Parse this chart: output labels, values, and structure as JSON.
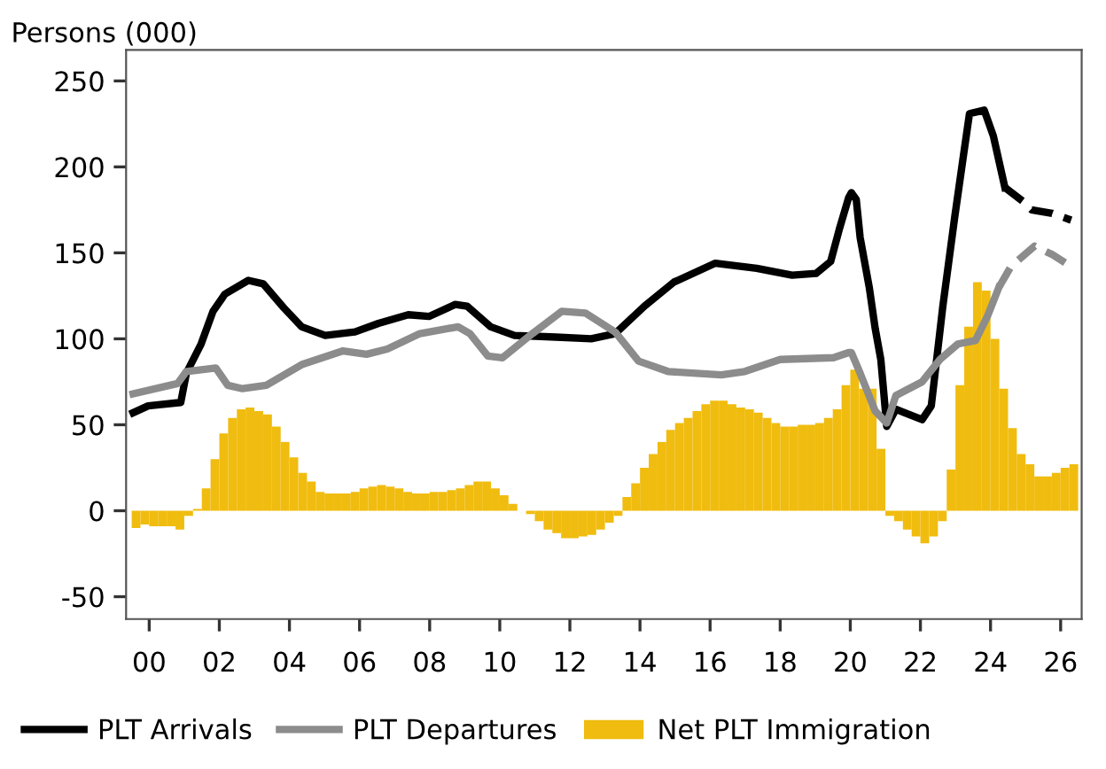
{
  "chart_data": {
    "type": "bar",
    "ylabel": "Persons (000)",
    "legend": "bottom",
    "grid": false,
    "xlim": [
      1999.34,
      2026.6
    ],
    "ylim": [
      -63,
      268
    ],
    "xticks": [
      {
        "value": 2000,
        "label": "00"
      },
      {
        "value": 2002,
        "label": "02"
      },
      {
        "value": 2004,
        "label": "04"
      },
      {
        "value": 2006,
        "label": "06"
      },
      {
        "value": 2008,
        "label": "08"
      },
      {
        "value": 2010,
        "label": "10"
      },
      {
        "value": 2012,
        "label": "12"
      },
      {
        "value": 2014,
        "label": "14"
      },
      {
        "value": 2016,
        "label": "16"
      },
      {
        "value": 2018,
        "label": "18"
      },
      {
        "value": 2020,
        "label": "20"
      },
      {
        "value": 2022,
        "label": "22"
      },
      {
        "value": 2024,
        "label": "24"
      },
      {
        "value": 2026,
        "label": "26"
      }
    ],
    "yticks": [
      -50,
      0,
      50,
      100,
      150,
      200,
      250
    ],
    "series": [
      {
        "name": "PLT Arrivals",
        "type": "line",
        "color": "#000000",
        "line_style": "solid",
        "x": [
          1999.54,
          1999.97,
          2000.9,
          2001.06,
          2001.48,
          2001.82,
          2002.16,
          2002.83,
          2003.25,
          2003.84,
          2004.35,
          2005.02,
          2005.87,
          2006.54,
          2007.39,
          2007.98,
          2008.73,
          2009.07,
          2009.74,
          2010.42,
          2011.6,
          2012.61,
          2013.29,
          2014.13,
          2014.97,
          2016.15,
          2017.33,
          2018.34,
          2019.02,
          2019.44,
          2019.69,
          2019.95,
          2020.03,
          2020.17,
          2020.28,
          2020.54,
          2020.71,
          2020.87,
          2021.04,
          2021.3,
          2022.05,
          2022.31,
          2022.64,
          2022.98,
          2023.23,
          2023.4,
          2023.82,
          2024.08,
          2024.41
        ],
        "values": [
          57,
          61,
          63,
          80,
          97,
          116,
          126,
          134,
          132,
          118,
          107,
          102,
          104,
          109,
          114,
          113,
          120,
          119,
          107,
          102,
          101,
          100,
          103,
          119,
          133,
          144,
          141,
          137,
          138,
          145,
          164,
          182,
          185,
          181,
          159,
          130,
          106,
          88,
          49,
          59,
          53,
          61,
          119,
          171,
          207,
          231,
          233,
          218,
          188
        ]
      },
      {
        "type": "line",
        "color": "#000000",
        "line_style": "dashed",
        "x": [
          2024.41,
          2024.92,
          2025.17,
          2025.76,
          2026.3
        ],
        "values": [
          188,
          180,
          175,
          173,
          169
        ]
      },
      {
        "name": "PLT Departures",
        "type": "line",
        "color": "#8c8c8c",
        "line_style": "solid",
        "x": [
          1999.54,
          2000.81,
          2001.06,
          2001.9,
          2002.24,
          2002.66,
          2003.34,
          2004.35,
          2005.53,
          2006.2,
          2006.79,
          2007.72,
          2008.81,
          2009.15,
          2009.66,
          2010.08,
          2010.93,
          2011.77,
          2012.44,
          2013.29,
          2013.96,
          2014.8,
          2016.32,
          2016.99,
          2018.0,
          2019.52,
          2019.95,
          2020.03,
          2020.28,
          2020.71,
          2021.04,
          2021.3,
          2022.05,
          2022.56,
          2023.07,
          2023.57,
          2023.91,
          2024.24
        ],
        "values": [
          68,
          74,
          81,
          83,
          73,
          71,
          73,
          85,
          93,
          91,
          94,
          103,
          107,
          103,
          90,
          89,
          103,
          116,
          115,
          104,
          87,
          81,
          79,
          81,
          88,
          89,
          92,
          92,
          80,
          58,
          51,
          67,
          75,
          88,
          97,
          99,
          113,
          130
        ]
      },
      {
        "type": "line",
        "color": "#8c8c8c",
        "line_style": "dashed",
        "x": [
          2024.24,
          2024.58,
          2025.26,
          2025.76,
          2026.3
        ],
        "values": [
          130,
          142,
          154,
          149,
          142
        ]
      },
      {
        "name": "Net PLT Immigration",
        "color": "#f0bc0f",
        "x": [
          1999.625,
          1999.875,
          2000.125,
          2000.375,
          2000.625,
          2000.875,
          2001.125,
          2001.375,
          2001.625,
          2001.875,
          2002.125,
          2002.375,
          2002.625,
          2002.875,
          2003.125,
          2003.375,
          2003.625,
          2003.875,
          2004.125,
          2004.375,
          2004.625,
          2004.875,
          2005.125,
          2005.375,
          2005.625,
          2005.875,
          2006.125,
          2006.375,
          2006.625,
          2006.875,
          2007.125,
          2007.375,
          2007.625,
          2007.875,
          2008.125,
          2008.375,
          2008.625,
          2008.875,
          2009.125,
          2009.375,
          2009.625,
          2009.875,
          2010.125,
          2010.375,
          2010.625,
          2010.875,
          2011.125,
          2011.375,
          2011.625,
          2011.875,
          2012.125,
          2012.375,
          2012.625,
          2012.875,
          2013.125,
          2013.375,
          2013.625,
          2013.875,
          2014.125,
          2014.375,
          2014.625,
          2014.875,
          2015.125,
          2015.375,
          2015.625,
          2015.875,
          2016.125,
          2016.375,
          2016.625,
          2016.875,
          2017.125,
          2017.375,
          2017.625,
          2017.875,
          2018.125,
          2018.375,
          2018.625,
          2018.875,
          2019.125,
          2019.375,
          2019.625,
          2019.875,
          2020.125,
          2020.375,
          2020.625,
          2020.875,
          2021.125,
          2021.375,
          2021.625,
          2021.875,
          2022.125,
          2022.375,
          2022.625,
          2022.875,
          2023.125,
          2023.375,
          2023.625,
          2023.875,
          2024.125,
          2024.375,
          2024.625,
          2024.875,
          2025.125,
          2025.375,
          2025.625,
          2025.875,
          2026.125,
          2026.375
        ],
        "values": [
          -10,
          -8,
          -9,
          -9,
          -9,
          -11,
          -3,
          1,
          13,
          30,
          45,
          54,
          59,
          60,
          58,
          56,
          49,
          40,
          31,
          22,
          17,
          11,
          10,
          10,
          10,
          11,
          13,
          14,
          15,
          14,
          13,
          11,
          10,
          10,
          11,
          11,
          12,
          13,
          15,
          17,
          17,
          13,
          9,
          4,
          0,
          -2,
          -6,
          -11,
          -13,
          -16,
          -16,
          -15,
          -14,
          -11,
          -7,
          -3,
          8,
          16,
          25,
          33,
          40,
          47,
          51,
          54,
          58,
          62,
          64,
          64,
          62,
          60,
          59,
          57,
          54,
          51,
          49,
          49,
          50,
          50,
          51,
          54,
          59,
          73,
          82,
          71,
          71,
          36,
          -3,
          -6,
          -11,
          -15,
          -19,
          -15,
          -6,
          24,
          73,
          107,
          133,
          128,
          100,
          71,
          48,
          33,
          27,
          20,
          20,
          22,
          25,
          27
        ]
      }
    ]
  }
}
